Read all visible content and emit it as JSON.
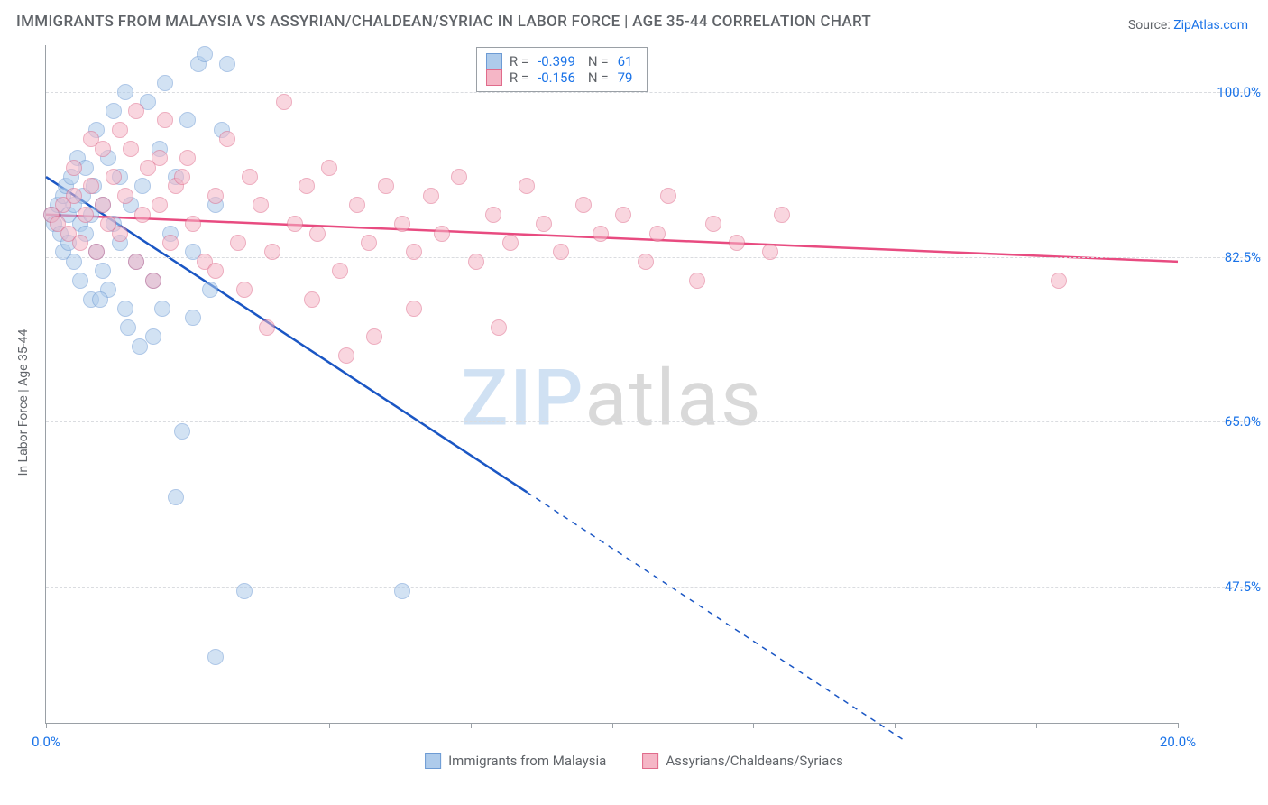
{
  "title": "IMMIGRANTS FROM MALAYSIA VS ASSYRIAN/CHALDEAN/SYRIAC IN LABOR FORCE | AGE 35-44 CORRELATION CHART",
  "source_label": "Source:",
  "source_name": "ZipAtlas.com",
  "yaxis_title": "In Labor Force | Age 35-44",
  "watermark_a": "ZIP",
  "watermark_b": "atlas",
  "chart": {
    "type": "scatter",
    "xlim": [
      0.0,
      20.0
    ],
    "ylim": [
      33.0,
      105.0
    ],
    "x_ticks": [
      0.0,
      2.5,
      5.0,
      7.5,
      10.0,
      12.5,
      15.0,
      17.5,
      20.0
    ],
    "x_tick_labels_shown": {
      "0": "0.0%",
      "20": "20.0%"
    },
    "y_ticks": [
      47.5,
      65.0,
      82.5,
      100.0
    ],
    "y_tick_labels": [
      "47.5%",
      "65.0%",
      "82.5%",
      "100.0%"
    ],
    "grid_color": "#dadce0",
    "axis_color": "#9aa0a6",
    "background_color": "#ffffff",
    "marker_radius": 9,
    "marker_opacity": 0.55,
    "series": [
      {
        "key": "malaysia",
        "label": "Immigrants from Malaysia",
        "fill": "#aecbeb",
        "stroke": "#6d9bd4",
        "line_color": "#1a56c4",
        "r": -0.399,
        "n": 61,
        "trend": {
          "x1": 0.0,
          "y1": 91.0,
          "x2": 8.5,
          "y2": 57.5,
          "x2_dash": 15.2,
          "y2_dash": 31.0
        },
        "points": [
          [
            0.1,
            87
          ],
          [
            0.15,
            86
          ],
          [
            0.2,
            88
          ],
          [
            0.25,
            85
          ],
          [
            0.3,
            89
          ],
          [
            0.3,
            83
          ],
          [
            0.35,
            90
          ],
          [
            0.4,
            84
          ],
          [
            0.4,
            87
          ],
          [
            0.45,
            91
          ],
          [
            0.5,
            82
          ],
          [
            0.5,
            88
          ],
          [
            0.55,
            93
          ],
          [
            0.6,
            80
          ],
          [
            0.6,
            86
          ],
          [
            0.65,
            89
          ],
          [
            0.7,
            85
          ],
          [
            0.7,
            92
          ],
          [
            0.8,
            78
          ],
          [
            0.8,
            87
          ],
          [
            0.85,
            90
          ],
          [
            0.9,
            83
          ],
          [
            0.9,
            96
          ],
          [
            1.0,
            81
          ],
          [
            1.0,
            88
          ],
          [
            1.1,
            79
          ],
          [
            1.1,
            93
          ],
          [
            1.2,
            86
          ],
          [
            1.2,
            98
          ],
          [
            1.3,
            84
          ],
          [
            1.3,
            91
          ],
          [
            1.4,
            77
          ],
          [
            1.4,
            100
          ],
          [
            1.5,
            88
          ],
          [
            1.6,
            82
          ],
          [
            1.7,
            90
          ],
          [
            1.8,
            99
          ],
          [
            1.9,
            80
          ],
          [
            2.0,
            94
          ],
          [
            2.1,
            101
          ],
          [
            2.2,
            85
          ],
          [
            2.3,
            91
          ],
          [
            2.5,
            97
          ],
          [
            2.6,
            83
          ],
          [
            2.7,
            103
          ],
          [
            2.8,
            104
          ],
          [
            2.9,
            79
          ],
          [
            3.0,
            88
          ],
          [
            3.1,
            96
          ],
          [
            3.2,
            103
          ],
          [
            2.3,
            57
          ],
          [
            2.4,
            64
          ],
          [
            3.5,
            47
          ],
          [
            3.0,
            40
          ],
          [
            6.3,
            47
          ],
          [
            1.45,
            75
          ],
          [
            1.9,
            74
          ],
          [
            0.95,
            78
          ],
          [
            2.6,
            76
          ],
          [
            2.05,
            77
          ],
          [
            1.65,
            73
          ]
        ]
      },
      {
        "key": "assyrian",
        "label": "Assyrians/Chaldeans/Syriacs",
        "fill": "#f5b6c6",
        "stroke": "#e06b8b",
        "line_color": "#e84b80",
        "r": -0.156,
        "n": 79,
        "trend": {
          "x1": 0.0,
          "y1": 87.0,
          "x2": 20.0,
          "y2": 82.0
        },
        "points": [
          [
            0.1,
            87
          ],
          [
            0.2,
            86
          ],
          [
            0.3,
            88
          ],
          [
            0.4,
            85
          ],
          [
            0.5,
            89
          ],
          [
            0.6,
            84
          ],
          [
            0.7,
            87
          ],
          [
            0.8,
            90
          ],
          [
            0.9,
            83
          ],
          [
            1.0,
            88
          ],
          [
            1.1,
            86
          ],
          [
            1.2,
            91
          ],
          [
            1.3,
            85
          ],
          [
            1.4,
            89
          ],
          [
            1.5,
            94
          ],
          [
            1.6,
            82
          ],
          [
            1.7,
            87
          ],
          [
            1.8,
            92
          ],
          [
            1.9,
            80
          ],
          [
            2.0,
            88
          ],
          [
            2.1,
            97
          ],
          [
            2.2,
            84
          ],
          [
            2.3,
            90
          ],
          [
            2.5,
            93
          ],
          [
            2.6,
            86
          ],
          [
            2.8,
            82
          ],
          [
            3.0,
            89
          ],
          [
            3.2,
            95
          ],
          [
            3.4,
            84
          ],
          [
            3.6,
            91
          ],
          [
            3.8,
            88
          ],
          [
            4.0,
            83
          ],
          [
            4.2,
            99
          ],
          [
            4.4,
            86
          ],
          [
            4.6,
            90
          ],
          [
            4.8,
            85
          ],
          [
            5.0,
            92
          ],
          [
            5.2,
            81
          ],
          [
            5.5,
            88
          ],
          [
            5.7,
            84
          ],
          [
            5.8,
            74
          ],
          [
            6.0,
            90
          ],
          [
            6.3,
            86
          ],
          [
            6.5,
            83
          ],
          [
            6.8,
            89
          ],
          [
            7.0,
            85
          ],
          [
            7.3,
            91
          ],
          [
            7.6,
            82
          ],
          [
            7.9,
            87
          ],
          [
            8.2,
            84
          ],
          [
            8.5,
            90
          ],
          [
            8.8,
            86
          ],
          [
            9.1,
            83
          ],
          [
            9.5,
            88
          ],
          [
            9.8,
            85
          ],
          [
            10.2,
            87
          ],
          [
            10.6,
            82
          ],
          [
            11.0,
            89
          ],
          [
            11.5,
            80
          ],
          [
            11.8,
            86
          ],
          [
            12.2,
            84
          ],
          [
            12.8,
            83
          ],
          [
            13.0,
            87
          ],
          [
            8.0,
            75
          ],
          [
            6.5,
            77
          ],
          [
            5.3,
            72
          ],
          [
            4.7,
            78
          ],
          [
            3.9,
            75
          ],
          [
            10.8,
            85
          ],
          [
            17.9,
            80
          ],
          [
            1.0,
            94
          ],
          [
            1.3,
            96
          ],
          [
            1.6,
            98
          ],
          [
            2.0,
            93
          ],
          [
            2.4,
            91
          ],
          [
            0.5,
            92
          ],
          [
            0.8,
            95
          ],
          [
            3.0,
            81
          ],
          [
            3.5,
            79
          ]
        ]
      }
    ],
    "legend_top": {
      "r_label": "R =",
      "n_label": "N ="
    }
  }
}
